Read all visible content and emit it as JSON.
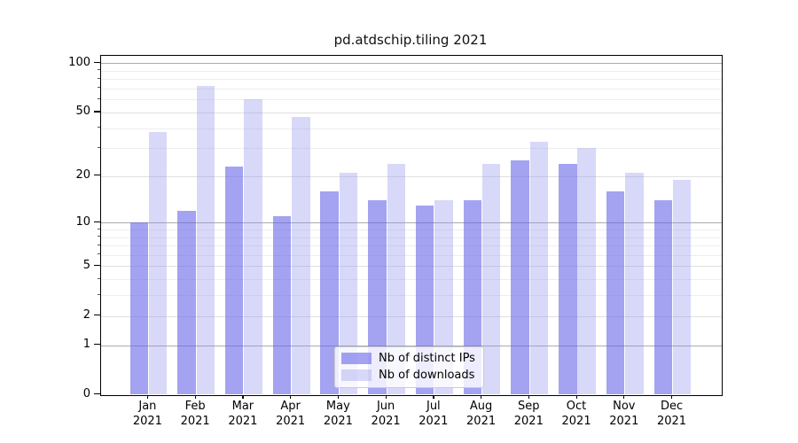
{
  "chart_data": {
    "type": "bar",
    "title": "pd.atdschip.tiling 2021",
    "scale": "log10(1+x)",
    "categories": [
      "Jan",
      "Feb",
      "Mar",
      "Apr",
      "May",
      "Jun",
      "Jul",
      "Aug",
      "Sep",
      "Oct",
      "Nov",
      "Dec"
    ],
    "year": "2021",
    "series": [
      {
        "name": "Nb of distinct IPs",
        "key": "distinct-ips",
        "color": "#a3a3f1",
        "rgba": "rgba(102,102,233,0.6)",
        "values": [
          10,
          12,
          23,
          11,
          16,
          14,
          13,
          14,
          25,
          24,
          16,
          14
        ]
      },
      {
        "name": "Nb of downloads",
        "key": "downloads",
        "color": "#d8d8f8",
        "rgba": "rgba(144,144,235,0.35)",
        "values": [
          38,
          73,
          60,
          47,
          21,
          24,
          14,
          24,
          33,
          30,
          21,
          19
        ]
      }
    ],
    "y_major_ticks": [
      0,
      1,
      2,
      5,
      10,
      20,
      50,
      100
    ],
    "y_decade_ticks": [
      1,
      10,
      100
    ],
    "y_minor_gridlines": [
      3,
      4,
      6,
      7,
      8,
      9,
      30,
      40,
      60,
      70,
      80,
      90
    ],
    "ylim": [
      0,
      111
    ],
    "grid": true,
    "legend_position": "lower center",
    "colors": {
      "gridline_decade": "#ababab",
      "gridline_major": "#e0e0e0",
      "gridline_minor": "#eeeeee",
      "axis": "#000000"
    }
  }
}
